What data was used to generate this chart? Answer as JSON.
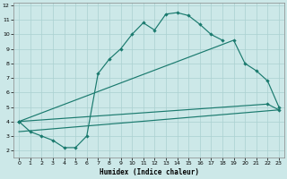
{
  "xlabel": "Humidex (Indice chaleur)",
  "bg_color": "#cce8e8",
  "grid_color": "#aad0d0",
  "line_color": "#1a7a6e",
  "xlim": [
    -0.5,
    23.5
  ],
  "ylim": [
    1.5,
    12.2
  ],
  "xticks": [
    0,
    1,
    2,
    3,
    4,
    5,
    6,
    7,
    8,
    9,
    10,
    11,
    12,
    13,
    14,
    15,
    16,
    17,
    18,
    19,
    20,
    21,
    22,
    23
  ],
  "yticks": [
    2,
    3,
    4,
    5,
    6,
    7,
    8,
    9,
    10,
    11,
    12
  ],
  "curve1_x": [
    0,
    1,
    2,
    3,
    4,
    5,
    6,
    7,
    8,
    9,
    10,
    11,
    12,
    13,
    14,
    15,
    16,
    17,
    18
  ],
  "curve1_y": [
    4.0,
    3.3,
    3.0,
    2.7,
    2.2,
    2.2,
    3.0,
    7.3,
    8.3,
    9.0,
    10.0,
    10.8,
    10.3,
    11.4,
    11.5,
    11.3,
    10.7,
    10.0,
    9.6
  ],
  "curve2_x": [
    0,
    19,
    20,
    21,
    22,
    23
  ],
  "curve2_y": [
    4.0,
    9.6,
    8.0,
    7.5,
    6.8,
    5.0
  ],
  "curve3_x": [
    0,
    22,
    23
  ],
  "curve3_y": [
    4.0,
    5.2,
    4.8
  ],
  "curve4_x": [
    0,
    23
  ],
  "curve4_y": [
    3.3,
    4.8
  ]
}
